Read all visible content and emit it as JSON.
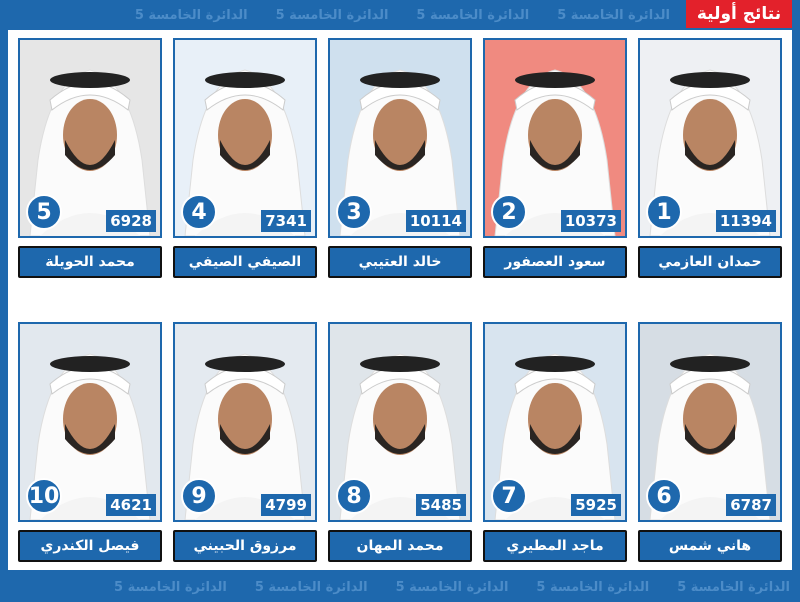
{
  "header": {
    "badge": "نتائج أولية",
    "watermark": "الدائرة الخامسة 5"
  },
  "colors": {
    "primary": "#1e68ad",
    "badge": "#e3212b"
  },
  "candidates": [
    {
      "rank": "1",
      "name": "حمدان العازمي",
      "votes": "11394",
      "bg": "#eef0f3"
    },
    {
      "rank": "2",
      "name": "سعود العصفور",
      "votes": "10373",
      "bg": "#f08a80"
    },
    {
      "rank": "3",
      "name": "خالد العتيبي",
      "votes": "10114",
      "bg": "#cfe0ee"
    },
    {
      "rank": "4",
      "name": "الصيفي الصيفي",
      "votes": "7341",
      "bg": "#e8f0f8"
    },
    {
      "rank": "5",
      "name": "محمد الحويلة",
      "votes": "6928",
      "bg": "#e6e6e6"
    },
    {
      "rank": "6",
      "name": "هاني شمس",
      "votes": "6787",
      "bg": "#d6dde4"
    },
    {
      "rank": "7",
      "name": "ماجد المطيري",
      "votes": "5925",
      "bg": "#d8e4ef"
    },
    {
      "rank": "8",
      "name": "محمد المهان",
      "votes": "5485",
      "bg": "#dfe5ea"
    },
    {
      "rank": "9",
      "name": "مرزوق الحبيني",
      "votes": "4799",
      "bg": "#e4eaf0"
    },
    {
      "rank": "10",
      "name": "فيصل الكندري",
      "votes": "4621",
      "bg": "#e2e8ee"
    }
  ]
}
